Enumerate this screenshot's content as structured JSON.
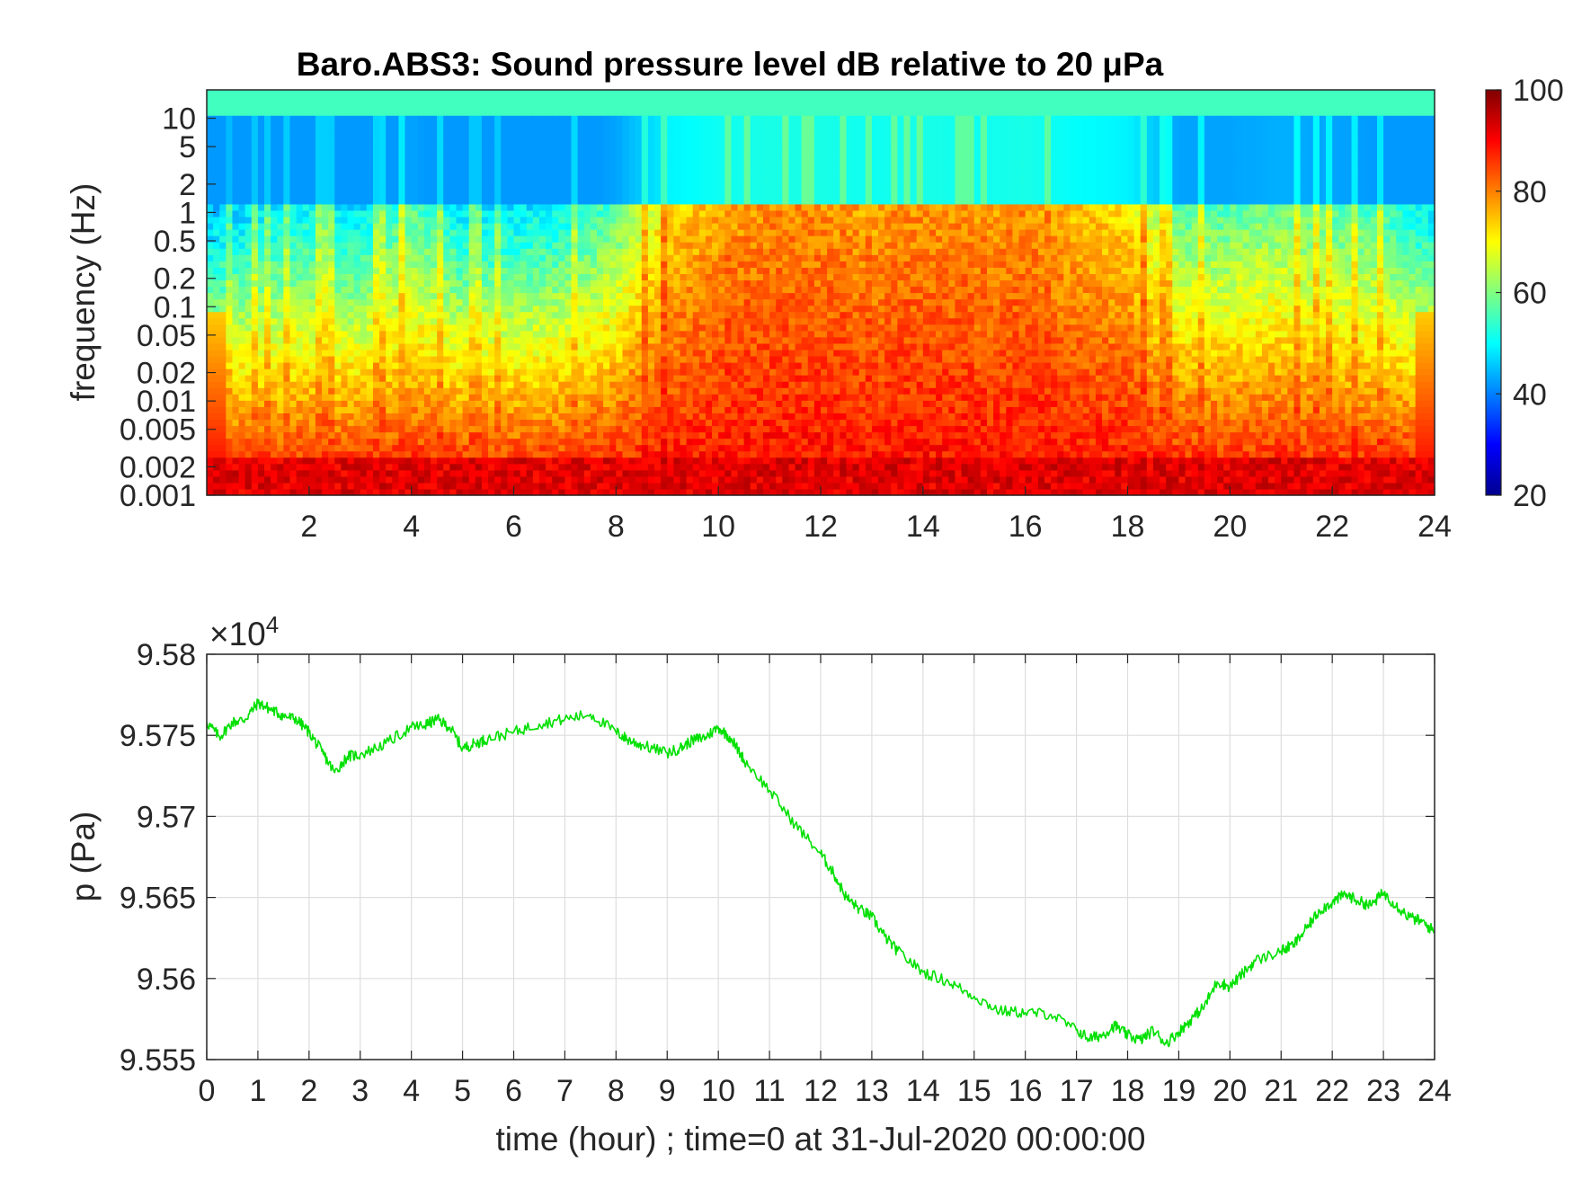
{
  "chart_data": [
    {
      "type": "heatmap",
      "title": "Baro.ABS3: Sound pressure level dB relative to 20 μPa",
      "ylabel": "frequency (Hz)",
      "xlim": [
        0,
        24
      ],
      "x_ticks": [
        "2",
        "4",
        "6",
        "8",
        "10",
        "12",
        "14",
        "16",
        "18",
        "20",
        "22",
        "24"
      ],
      "y_scale": "log",
      "y_ticks": [
        "10",
        "5",
        "2",
        "1",
        "0.5",
        "0.2",
        "0.1",
        "0.05",
        "0.02",
        "0.01",
        "0.005",
        "0.002",
        "0.001"
      ],
      "colorbar": {
        "colormap": "jet",
        "range": [
          20,
          100
        ],
        "ticks": [
          "100",
          "80",
          "60",
          "40",
          "20"
        ]
      },
      "level_profile_hours": [
        0,
        1,
        2,
        3,
        4,
        5,
        6,
        7,
        8,
        9,
        10,
        11,
        12,
        13,
        14,
        15,
        16,
        17,
        18,
        19,
        20,
        21,
        22,
        23,
        24
      ],
      "activity_by_hour": [
        0.2,
        0.3,
        0.35,
        0.3,
        0.5,
        0.3,
        0.3,
        0.35,
        0.5,
        0.85,
        0.95,
        1.0,
        1.0,
        0.95,
        1.0,
        0.95,
        1.0,
        0.9,
        0.85,
        0.5,
        0.5,
        0.55,
        0.5,
        0.45,
        0.3
      ],
      "floor_db_low_freq": 90,
      "high_freq_db": 48
    },
    {
      "type": "line",
      "ylabel": "p (Pa)",
      "xlabel": "time (hour) ; time=0 at 31-Jul-2020 00:00:00",
      "y_exponent_label": "×10",
      "y_exponent_power": "4",
      "xlim": [
        0,
        24
      ],
      "ylim": [
        9.555,
        9.58
      ],
      "x_ticks": [
        "0",
        "1",
        "2",
        "3",
        "4",
        "5",
        "6",
        "7",
        "8",
        "9",
        "10",
        "11",
        "12",
        "13",
        "14",
        "15",
        "16",
        "17",
        "18",
        "19",
        "20",
        "21",
        "22",
        "23",
        "24"
      ],
      "y_ticks": [
        "9.58",
        "9.575",
        "9.57",
        "9.565",
        "9.56",
        "9.555"
      ],
      "grid": true,
      "line_color": "#00e000",
      "series": [
        {
          "x": [
            0,
            0.25,
            0.5,
            0.75,
            1.0,
            1.25,
            1.5,
            1.75,
            2.0,
            2.25,
            2.5,
            2.75,
            3.0,
            3.5,
            4.0,
            4.25,
            4.5,
            4.75,
            5.0,
            5.25,
            5.5,
            6.0,
            6.5,
            7.0,
            7.5,
            8.0,
            8.25,
            8.5,
            9.0,
            9.25,
            9.5,
            9.75,
            10.0,
            10.25,
            10.5,
            11.0,
            11.5,
            12.0,
            12.25,
            12.5,
            12.75,
            13.0,
            13.25,
            13.5,
            14.0,
            14.5,
            15.0,
            15.5,
            16.0,
            16.5,
            17.0,
            17.25,
            17.5,
            17.75,
            18.0,
            18.25,
            18.5,
            18.75,
            19.0,
            19.25,
            19.5,
            19.75,
            20.0,
            20.25,
            20.5,
            21.0,
            21.25,
            21.5,
            21.75,
            22.0,
            22.25,
            22.5,
            22.75,
            23.0,
            23.25,
            23.5,
            23.75,
            24.0
          ],
          "y": [
            9.5758,
            9.5749,
            9.5758,
            9.576,
            9.577,
            9.5766,
            9.5762,
            9.576,
            9.5752,
            9.574,
            9.5727,
            9.5737,
            9.5738,
            9.5745,
            9.5755,
            9.5756,
            9.576,
            9.5755,
            9.5742,
            9.5745,
            9.5748,
            9.5752,
            9.5757,
            9.576,
            9.5763,
            9.5752,
            9.5747,
            9.5744,
            9.5739,
            9.5742,
            9.5747,
            9.5749,
            9.5755,
            9.5748,
            9.5735,
            9.5716,
            9.5695,
            9.5677,
            9.5665,
            9.565,
            9.5643,
            9.5638,
            9.5626,
            9.5617,
            9.5604,
            9.5598,
            9.5589,
            9.558,
            9.5579,
            9.5578,
            9.5568,
            9.5563,
            9.5565,
            9.5571,
            9.5565,
            9.5562,
            9.5568,
            9.556,
            9.5567,
            9.5575,
            9.5583,
            9.5598,
            9.5595,
            9.5603,
            9.5611,
            9.5617,
            9.5621,
            9.5631,
            9.5642,
            9.5647,
            9.5652,
            9.5648,
            9.5645,
            9.5653,
            9.5645,
            9.5638,
            9.5635,
            9.5629
          ]
        }
      ]
    }
  ]
}
